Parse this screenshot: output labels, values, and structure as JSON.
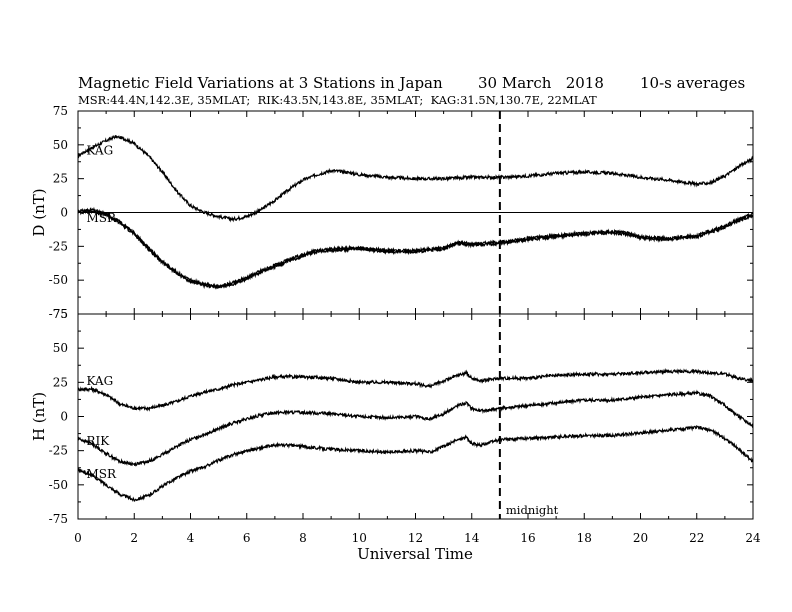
{
  "chart_data": {
    "type": "line",
    "title": "Magnetic Field Variations at 3 Stations in Japan",
    "date": "30 March   2018",
    "averaging": "10-s averages",
    "subtitle": "MSR:44.4N,142.3E, 35MLAT;  RIK:43.5N,143.8E, 35MLAT;  KAG:31.5N,130.7E, 22MLAT",
    "xlabel": "Universal Time",
    "x_ticks": [
      "0",
      "2",
      "4",
      "6",
      "8",
      "10",
      "12",
      "14",
      "16",
      "18",
      "20",
      "22",
      "24"
    ],
    "xlim": [
      0,
      24
    ],
    "grid": false,
    "midnight_ut": 15,
    "midnight_label": "midnight",
    "panels": [
      {
        "id": "D",
        "ylabel": "D (nT)",
        "ylim": [
          -75,
          75
        ],
        "y_ticks": [
          "75",
          "50",
          "25",
          "0",
          "-25",
          "-50",
          "-75"
        ],
        "zero_line": true,
        "labels": {
          "KAG": "KAG",
          "overlap": "MSR"
        },
        "series": [
          {
            "name": "KAG",
            "x": [
              0,
              0.5,
              1,
              1.3,
              1.6,
              2,
              2.5,
              3,
              3.5,
              4,
              4.5,
              5,
              5.5,
              6,
              6.5,
              7,
              7.5,
              8,
              8.5,
              9,
              9.5,
              10,
              11,
              12,
              13,
              14,
              15,
              16,
              17,
              18,
              19,
              20,
              21,
              22,
              22.5,
              23,
              23.5,
              24
            ],
            "y": [
              42,
              48,
              53,
              56,
              55,
              51,
              42,
              30,
              16,
              5,
              0,
              -3,
              -5,
              -3,
              2,
              9,
              17,
              24,
              28,
              31,
              30,
              28,
              26,
              25,
              25,
              26,
              26,
              27,
              29,
              30,
              29,
              26,
              24,
              21,
              22,
              27,
              34,
              40
            ]
          },
          {
            "name": "RIK",
            "x": [
              0,
              0.5,
              1,
              1.5,
              2,
              2.5,
              3,
              3.5,
              4,
              4.5,
              5,
              5.5,
              6,
              6.5,
              7,
              7.5,
              8,
              8.5,
              9,
              10,
              11,
              12,
              13,
              13.5,
              14,
              15,
              16,
              17,
              18,
              19,
              19.5,
              20,
              21,
              22,
              23,
              23.5,
              24
            ],
            "y": [
              0,
              1,
              -2,
              -8,
              -16,
              -27,
              -37,
              -45,
              -51,
              -54,
              -55,
              -53,
              -49,
              -44,
              -40,
              -36,
              -32,
              -29,
              -28,
              -27,
              -29,
              -29,
              -27,
              -23,
              -24,
              -23,
              -20,
              -18,
              -16,
              -15,
              -16,
              -19,
              -20,
              -18,
              -11,
              -6,
              -2
            ]
          },
          {
            "name": "MSR",
            "x": [
              0,
              0.5,
              1,
              1.5,
              2,
              2.5,
              3,
              3.5,
              4,
              4.5,
              5,
              5.5,
              6,
              6.5,
              7,
              7.5,
              8,
              8.5,
              9,
              10,
              11,
              12,
              13,
              13.5,
              14,
              15,
              16,
              17,
              18,
              19,
              19.5,
              20,
              21,
              22,
              23,
              23.5,
              24
            ],
            "y": [
              1,
              2,
              -1,
              -7,
              -15,
              -26,
              -36,
              -44,
              -50,
              -53,
              -55,
              -52,
              -48,
              -43,
              -39,
              -35,
              -31,
              -28,
              -27,
              -26,
              -28,
              -28,
              -26,
              -22,
              -23,
              -22,
              -19,
              -17,
              -15,
              -14,
              -15,
              -18,
              -19,
              -17,
              -10,
              -5,
              -1
            ]
          }
        ]
      },
      {
        "id": "H",
        "ylabel": "H (nT)",
        "ylim": [
          -75,
          75
        ],
        "y_ticks": [
          "75",
          "50",
          "25",
          "0",
          "-25",
          "-50",
          "-75"
        ],
        "zero_line": false,
        "labels": {
          "KAG": "KAG",
          "RIK": "RIK",
          "MSR": "MSR"
        },
        "series": [
          {
            "name": "KAG",
            "x": [
              0,
              0.5,
              1,
              1.5,
              2,
              2.5,
              3,
              3.5,
              4,
              4.5,
              5,
              5.5,
              6,
              6.5,
              7,
              7.5,
              8,
              9,
              10,
              11,
              12,
              12.5,
              13,
              13.5,
              13.8,
              14,
              14.3,
              15,
              16,
              17,
              18,
              19,
              20,
              21,
              22,
              23,
              23.5,
              24
            ],
            "y": [
              20,
              20,
              16,
              9,
              6,
              6,
              8,
              11,
              15,
              18,
              20,
              23,
              25,
              27,
              29,
              29,
              29,
              28,
              25,
              25,
              24,
              22,
              26,
              30,
              32,
              28,
              26,
              28,
              28,
              30,
              31,
              31,
              32,
              33,
              33,
              31,
              28,
              26
            ]
          },
          {
            "name": "RIK",
            "x": [
              0,
              0.5,
              1,
              1.5,
              2,
              2.5,
              3,
              3.5,
              4,
              4.5,
              5,
              5.5,
              6,
              6.5,
              7,
              7.5,
              8,
              9,
              10,
              11,
              12,
              12.5,
              13,
              13.5,
              13.8,
              14,
              14.3,
              15,
              16,
              17,
              18,
              19,
              20,
              21,
              22,
              22.5,
              23,
              23.5,
              24
            ],
            "y": [
              -16,
              -20,
              -27,
              -33,
              -35,
              -33,
              -28,
              -22,
              -17,
              -13,
              -9,
              -5,
              -2,
              1,
              3,
              3,
              3,
              2,
              0,
              -1,
              0,
              -2,
              2,
              8,
              10,
              6,
              4,
              6,
              8,
              10,
              12,
              12,
              14,
              16,
              17,
              15,
              8,
              0,
              -7
            ]
          },
          {
            "name": "MSR",
            "x": [
              0,
              0.5,
              1,
              1.5,
              2,
              2.5,
              3,
              3.5,
              4,
              4.5,
              5,
              5.5,
              6,
              6.5,
              7,
              7.5,
              8,
              9,
              10,
              11,
              12,
              12.5,
              13,
              13.5,
              13.8,
              14,
              14.3,
              15,
              16,
              17,
              18,
              19,
              20,
              21,
              22,
              22.5,
              23,
              23.5,
              24
            ],
            "y": [
              -39,
              -43,
              -50,
              -57,
              -61,
              -58,
              -51,
              -45,
              -40,
              -37,
              -32,
              -28,
              -25,
              -23,
              -21,
              -21,
              -22,
              -24,
              -25,
              -26,
              -25,
              -26,
              -22,
              -17,
              -15,
              -20,
              -21,
              -17,
              -16,
              -15,
              -14,
              -14,
              -12,
              -10,
              -8,
              -10,
              -16,
              -24,
              -33
            ]
          }
        ]
      }
    ]
  }
}
